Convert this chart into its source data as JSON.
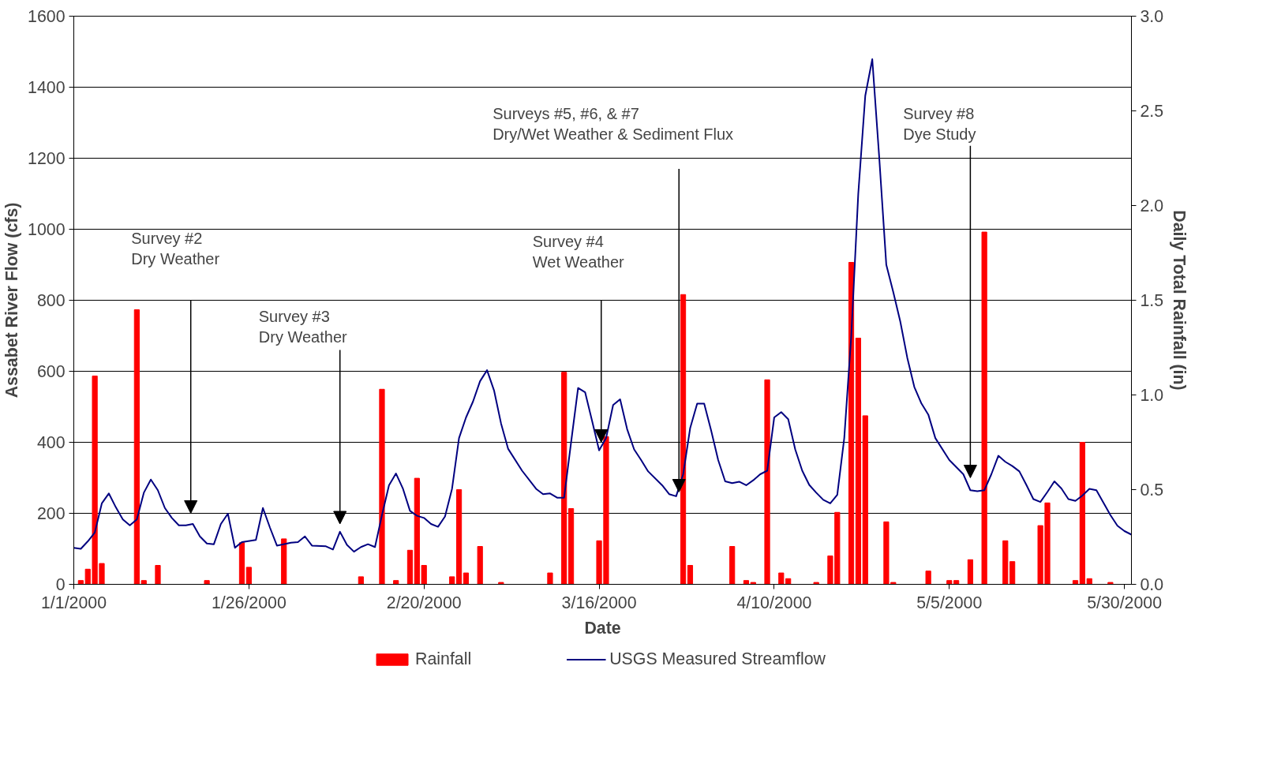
{
  "chart_data": {
    "type": "bar",
    "xlabel": "Date",
    "ylabel": "Assabet River Flow (cfs)",
    "y2label": "Daily Total Rainfall (in)",
    "xlim": [
      "2000-01-01",
      "2000-05-31"
    ],
    "xticks": [
      {
        "value": "2000-01-01",
        "label": "1/1/2000"
      },
      {
        "value": "2000-01-26",
        "label": "1/26/2000"
      },
      {
        "value": "2000-02-20",
        "label": "2/20/2000"
      },
      {
        "value": "2000-03-16",
        "label": "3/16/2000"
      },
      {
        "value": "2000-04-10",
        "label": "4/10/2000"
      },
      {
        "value": "2000-05-05",
        "label": "5/5/2000"
      },
      {
        "value": "2000-05-30",
        "label": "5/30/2000"
      }
    ],
    "ylim": [
      0,
      1600
    ],
    "yticks": [
      0,
      200,
      400,
      600,
      800,
      1000,
      1200,
      1400,
      1600
    ],
    "y2lim": [
      0,
      3
    ],
    "y2ticks": [
      {
        "value": 0,
        "label": "0.0"
      },
      0.5,
      {
        "value": 1,
        "label": "1.0"
      },
      1.5,
      {
        "value": 2,
        "label": "2.0"
      },
      2.5,
      {
        "value": 3,
        "label": "3.0"
      }
    ],
    "grid": "y",
    "legend": "bottom",
    "series": [
      {
        "name": "Rainfall",
        "axis": "y2",
        "color": "#ff0000",
        "x": [
          "2000-01-02",
          "2000-01-03",
          "2000-01-04",
          "2000-01-05",
          "2000-01-10",
          "2000-01-11",
          "2000-01-13",
          "2000-01-20",
          "2000-01-25",
          "2000-01-26",
          "2000-01-31",
          "2000-02-11",
          "2000-02-14",
          "2000-02-16",
          "2000-02-18",
          "2000-02-19",
          "2000-02-20",
          "2000-02-24",
          "2000-02-25",
          "2000-02-26",
          "2000-02-28",
          "2000-03-02",
          "2000-03-09",
          "2000-03-11",
          "2000-03-12",
          "2000-03-16",
          "2000-03-17",
          "2000-03-28",
          "2000-03-29",
          "2000-04-04",
          "2000-04-06",
          "2000-04-07",
          "2000-04-09",
          "2000-04-11",
          "2000-04-12",
          "2000-04-16",
          "2000-04-18",
          "2000-04-19",
          "2000-04-21",
          "2000-04-22",
          "2000-04-23",
          "2000-04-26",
          "2000-04-27",
          "2000-05-02",
          "2000-05-05",
          "2000-05-06",
          "2000-05-08",
          "2000-05-10",
          "2000-05-13",
          "2000-05-14",
          "2000-05-18",
          "2000-05-19",
          "2000-05-23",
          "2000-05-24",
          "2000-05-25",
          "2000-05-28"
        ],
        "values": [
          0.02,
          0.08,
          1.1,
          0.11,
          1.45,
          0.02,
          0.1,
          0.02,
          0.22,
          0.09,
          0.24,
          0.04,
          1.03,
          0.02,
          0.18,
          0.56,
          0.1,
          0.04,
          0.5,
          0.06,
          0.2,
          0.01,
          0.06,
          1.12,
          0.4,
          0.23,
          0.78,
          1.53,
          0.1,
          0.2,
          0.02,
          0.01,
          1.08,
          0.06,
          0.03,
          0.01,
          0.15,
          0.38,
          1.7,
          1.3,
          0.89,
          0.33,
          0.01,
          0.07,
          0.02,
          0.02,
          0.13,
          1.86,
          0.23,
          0.12,
          0.31,
          0.43,
          0.02,
          0.75,
          0.03,
          0.01
        ]
      },
      {
        "name": "USGS Measured Streamflow",
        "type": "line",
        "color": "#000080",
        "line_style": "solid",
        "marker": "none",
        "x": [
          "2000-01-01",
          "2000-01-02",
          "2000-01-03",
          "2000-01-04",
          "2000-01-05",
          "2000-01-06",
          "2000-01-07",
          "2000-01-08",
          "2000-01-09",
          "2000-01-10",
          "2000-01-11",
          "2000-01-12",
          "2000-01-13",
          "2000-01-14",
          "2000-01-15",
          "2000-01-16",
          "2000-01-17",
          "2000-01-18",
          "2000-01-19",
          "2000-01-20",
          "2000-01-21",
          "2000-01-22",
          "2000-01-23",
          "2000-01-24",
          "2000-01-25",
          "2000-01-27",
          "2000-01-28",
          "2000-01-29",
          "2000-01-30",
          "2000-02-01",
          "2000-02-02",
          "2000-02-03",
          "2000-02-04",
          "2000-02-06",
          "2000-02-07",
          "2000-02-08",
          "2000-02-09",
          "2000-02-10",
          "2000-02-11",
          "2000-02-12",
          "2000-02-13",
          "2000-02-14",
          "2000-02-15",
          "2000-02-16",
          "2000-02-17",
          "2000-02-18",
          "2000-02-19",
          "2000-02-20",
          "2000-02-21",
          "2000-02-22",
          "2000-02-23",
          "2000-02-24",
          "2000-02-25",
          "2000-02-26",
          "2000-02-27",
          "2000-02-28",
          "2000-02-29",
          "2000-03-01",
          "2000-03-02",
          "2000-03-03",
          "2000-03-05",
          "2000-03-07",
          "2000-03-08",
          "2000-03-09",
          "2000-03-10",
          "2000-03-11",
          "2000-03-12",
          "2000-03-13",
          "2000-03-14",
          "2000-03-15",
          "2000-03-16",
          "2000-03-17",
          "2000-03-18",
          "2000-03-19",
          "2000-03-20",
          "2000-03-21",
          "2000-03-22",
          "2000-03-23",
          "2000-03-25",
          "2000-03-26",
          "2000-03-27",
          "2000-03-28",
          "2000-03-29",
          "2000-03-30",
          "2000-03-31",
          "2000-04-01",
          "2000-04-02",
          "2000-04-03",
          "2000-04-04",
          "2000-04-05",
          "2000-04-06",
          "2000-04-07",
          "2000-04-08",
          "2000-04-09",
          "2000-04-10",
          "2000-04-11",
          "2000-04-12",
          "2000-04-13",
          "2000-04-14",
          "2000-04-15",
          "2000-04-16",
          "2000-04-17",
          "2000-04-18",
          "2000-04-19",
          "2000-04-20",
          "2000-04-21",
          "2000-04-22",
          "2000-04-23",
          "2000-04-24",
          "2000-04-25",
          "2000-04-26",
          "2000-04-27",
          "2000-04-28",
          "2000-04-29",
          "2000-04-30",
          "2000-05-01",
          "2000-05-02",
          "2000-05-03",
          "2000-05-05",
          "2000-05-06",
          "2000-05-07",
          "2000-05-08",
          "2000-05-09",
          "2000-05-10",
          "2000-05-11",
          "2000-05-12",
          "2000-05-13",
          "2000-05-14",
          "2000-05-15",
          "2000-05-16",
          "2000-05-17",
          "2000-05-18",
          "2000-05-19",
          "2000-05-20",
          "2000-05-21",
          "2000-05-22",
          "2000-05-23",
          "2000-05-24",
          "2000-05-25",
          "2000-05-26",
          "2000-05-27",
          "2000-05-28",
          "2000-05-29",
          "2000-05-30",
          "2000-05-31"
        ],
        "values": [
          103,
          100,
          121,
          146,
          228,
          256,
          217,
          183,
          166,
          183,
          258,
          295,
          265,
          215,
          187,
          166,
          166,
          170,
          135,
          115,
          113,
          170,
          199,
          103,
          119,
          125,
          215,
          160,
          109,
          117,
          119,
          135,
          109,
          107,
          98,
          148,
          111,
          92,
          105,
          113,
          105,
          195,
          279,
          312,
          269,
          207,
          193,
          187,
          170,
          162,
          191,
          269,
          412,
          470,
          515,
          572,
          603,
          546,
          453,
          382,
          320,
          269,
          254,
          256,
          244,
          244,
          400,
          553,
          541,
          460,
          377,
          412,
          505,
          521,
          437,
          380,
          350,
          318,
          279,
          254,
          248,
          310,
          440,
          509,
          509,
          433,
          350,
          290,
          285,
          289,
          279,
          293,
          310,
          320,
          470,
          485,
          465,
          380,
          320,
          280,
          258,
          238,
          228,
          252,
          412,
          700,
          1100,
          1376,
          1479,
          1200,
          900,
          823,
          740,
          638,
          556,
          510,
          478,
          412,
          350,
          330,
          310,
          265,
          262,
          265,
          310,
          362,
          345,
          333,
          318,
          280,
          240,
          232,
          260,
          290,
          270,
          240,
          235,
          250,
          269,
          265,
          230,
          195,
          165,
          150,
          140
        ]
      }
    ],
    "annotations": [
      "Survey #2\nDry Weather",
      "Survey #3\nDry Weather",
      "Survey #4\nWet Weather",
      "Surveys #5, #6, & #7\nDry/Wet Weather & Sediment Flux",
      "Survey #8\nDye Study"
    ]
  }
}
